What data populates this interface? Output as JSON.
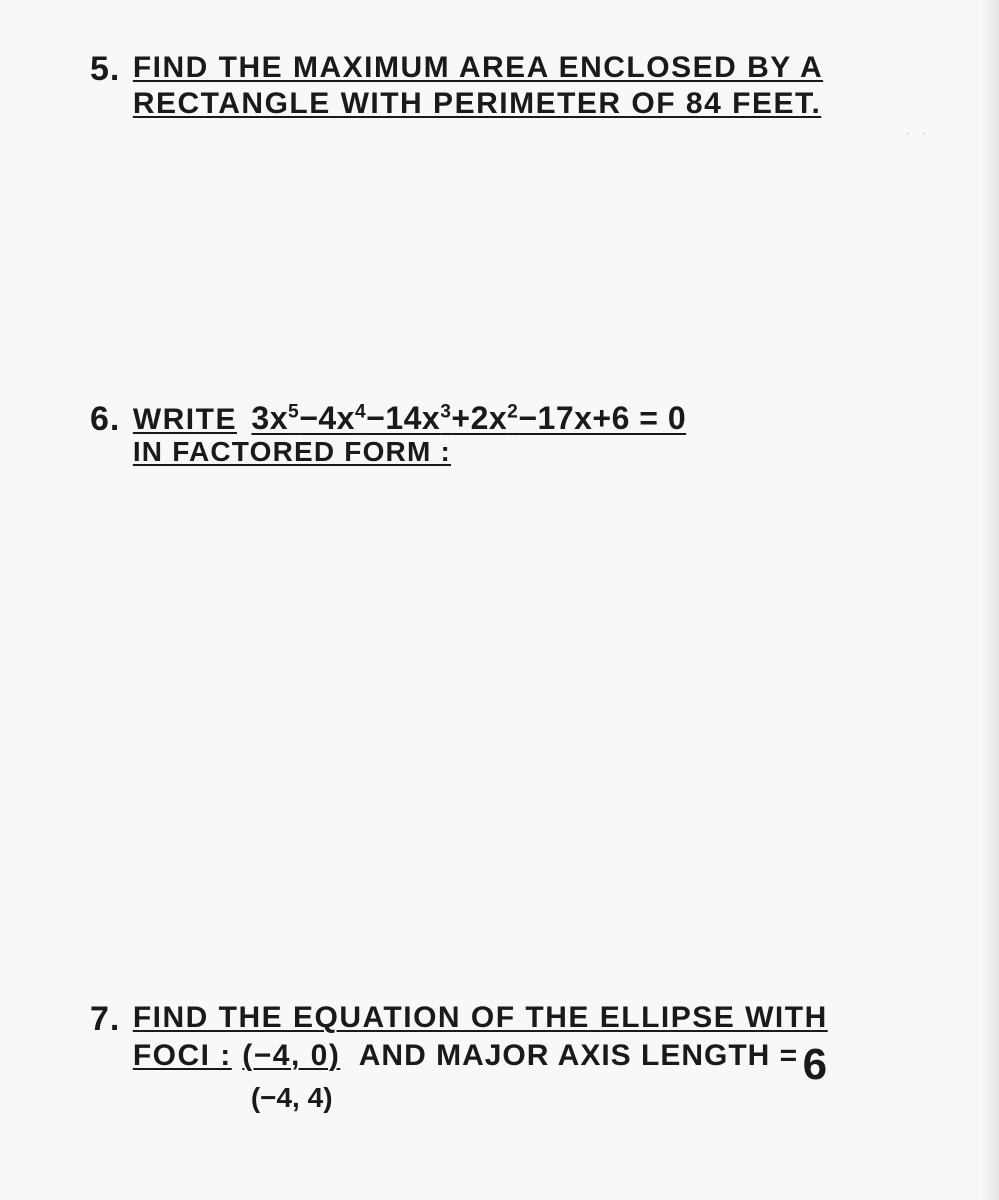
{
  "problems": {
    "p5": {
      "number": "5.",
      "line1": "FIND THE MAXIMUM AREA ENCLOSED BY A",
      "line2": "RECTANGLE WITH PERIMETER OF 84 FEET."
    },
    "p6": {
      "number": "6.",
      "prefix": "WRITE",
      "equation_html": "3x<sup>5</sup>−4x<sup>4</sup>−14x<sup>3</sup>+2x<sup>2</sup>−17x+6 = 0",
      "line2": "IN FACTORED FORM :"
    },
    "p7": {
      "number": "7.",
      "line1": "FIND THE EQUATION OF THE ELLIPSE WITH",
      "foci_label": "FOCI :",
      "foci1": "(−4, 0)",
      "foci2": "(−4, 4)",
      "major_text": "AND MAJOR AXIS LENGTH =",
      "major_value": "6"
    }
  },
  "colors": {
    "ink": "#1a1a1a",
    "paper": "#f8f8f6"
  }
}
